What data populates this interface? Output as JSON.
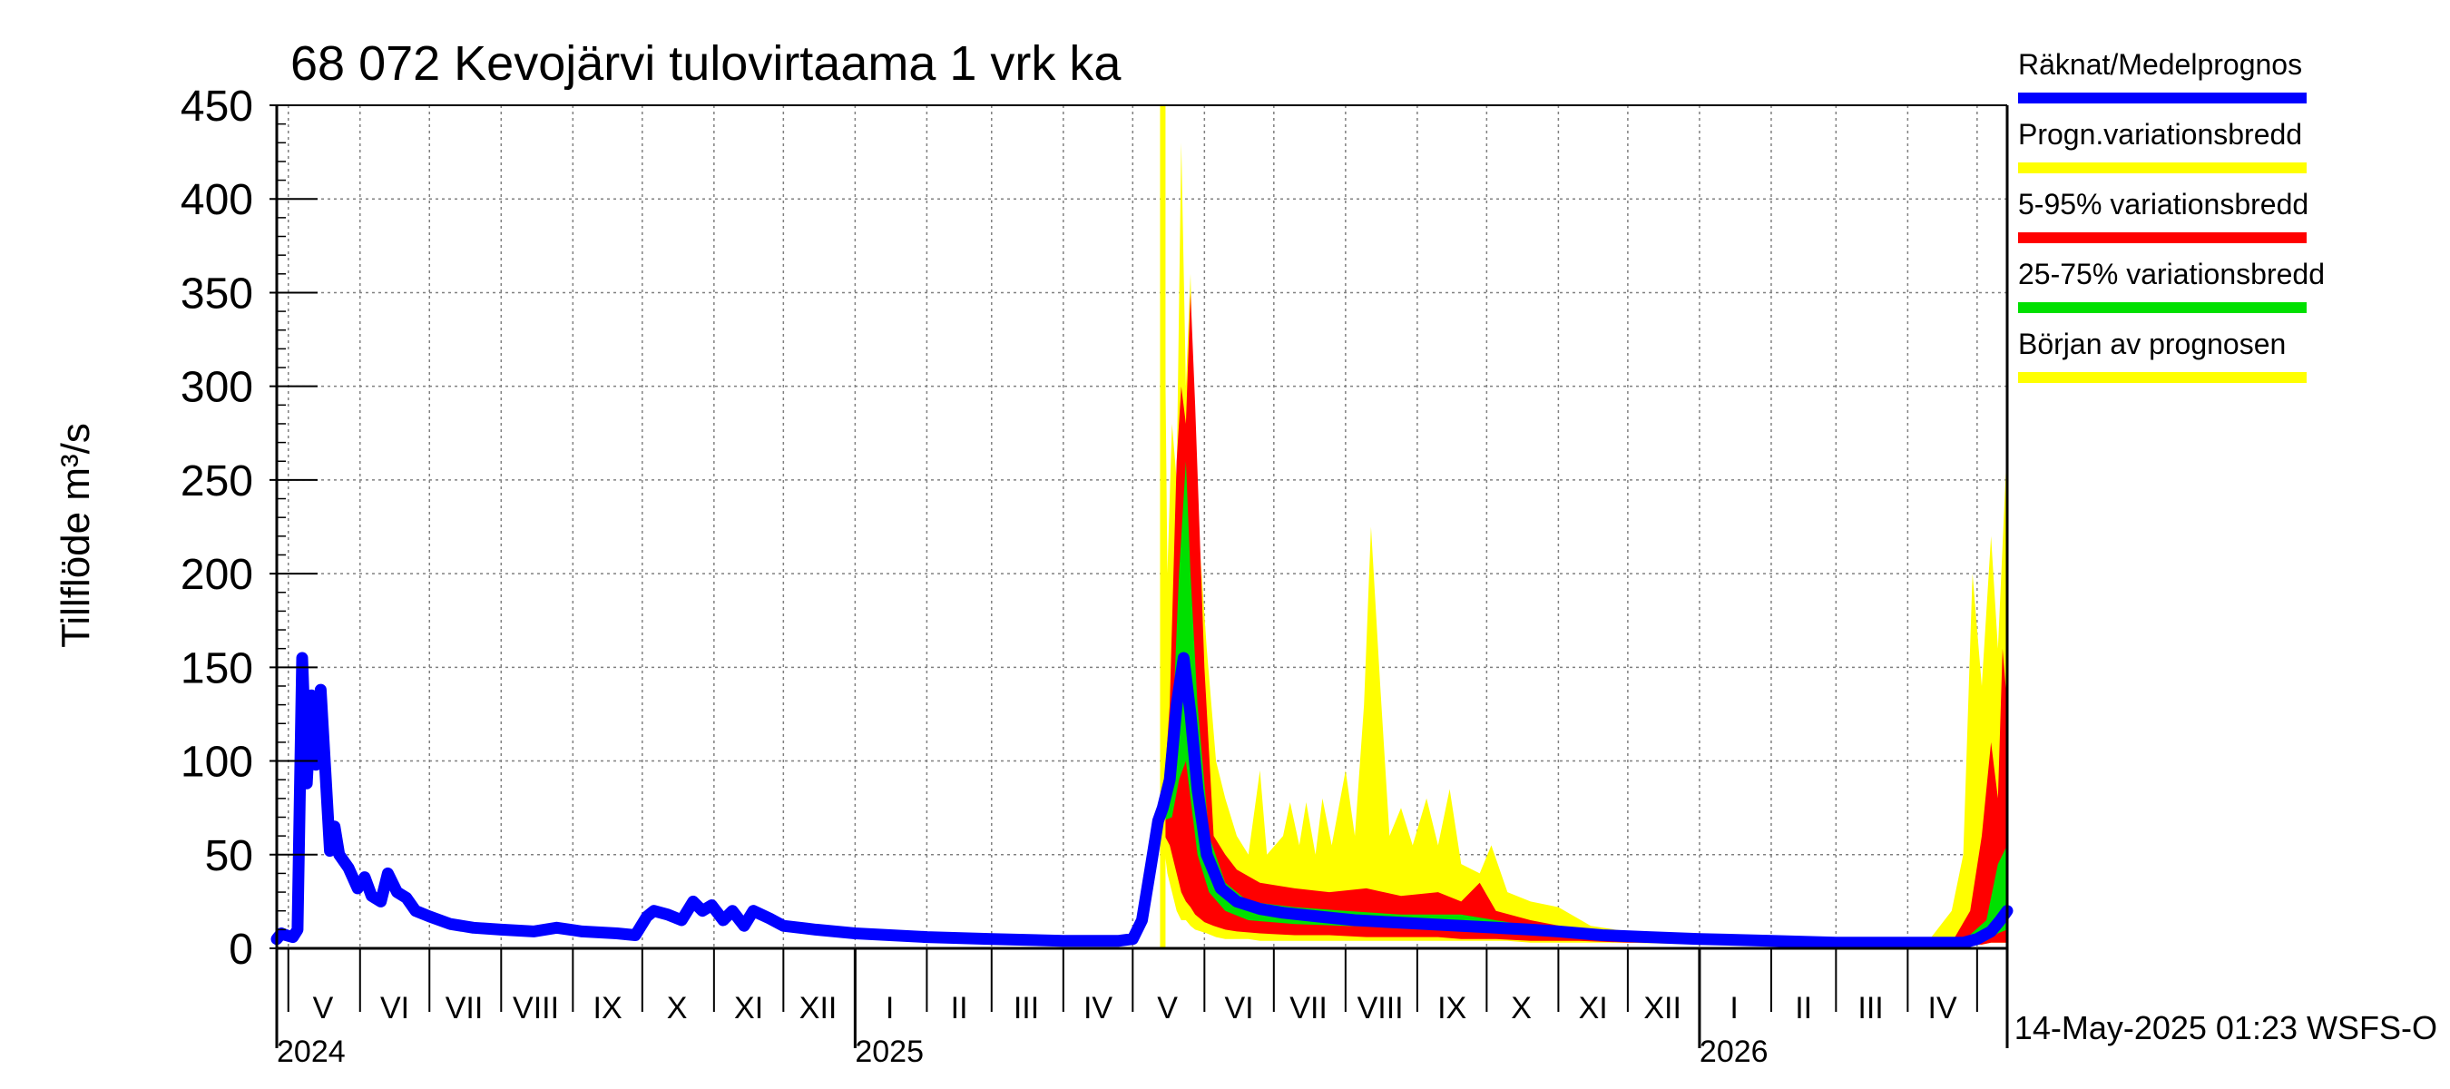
{
  "chart_data": {
    "type": "area",
    "title": "68 072 Kevojärvi tulovirtaama 1 vrk ka",
    "ylabel": "Tillflöde m³/s",
    "xlabel": "",
    "ylim": [
      0,
      450
    ],
    "yticks": [
      0,
      50,
      100,
      150,
      200,
      250,
      300,
      350,
      400,
      450
    ],
    "x_range": [
      "2024-04-26",
      "2026-05-14"
    ],
    "grid": true,
    "legend_position": "right",
    "forecast_start": "2025-05-14",
    "footer": "14-May-2025 01:23 WSFS-O",
    "month_ticks": [
      "2024-05-01",
      "2024-06-01",
      "2024-07-01",
      "2024-08-01",
      "2024-09-01",
      "2024-10-01",
      "2024-11-01",
      "2024-12-01",
      "2025-01-01",
      "2025-02-01",
      "2025-03-01",
      "2025-04-01",
      "2025-05-01",
      "2025-06-01",
      "2025-07-01",
      "2025-08-01",
      "2025-09-01",
      "2025-10-01",
      "2025-11-01",
      "2025-12-01",
      "2026-01-01",
      "2026-02-01",
      "2026-03-01",
      "2026-04-01",
      "2026-05-01"
    ],
    "month_labels": [
      {
        "label": "V",
        "date": "2024-05-16"
      },
      {
        "label": "VI",
        "date": "2024-06-16"
      },
      {
        "label": "VII",
        "date": "2024-07-16"
      },
      {
        "label": "VIII",
        "date": "2024-08-16"
      },
      {
        "label": "IX",
        "date": "2024-09-16"
      },
      {
        "label": "X",
        "date": "2024-10-16"
      },
      {
        "label": "XI",
        "date": "2024-11-16"
      },
      {
        "label": "XII",
        "date": "2024-12-16"
      },
      {
        "label": "I",
        "date": "2025-01-16"
      },
      {
        "label": "II",
        "date": "2025-02-15"
      },
      {
        "label": "III",
        "date": "2025-03-16"
      },
      {
        "label": "IV",
        "date": "2025-04-16"
      },
      {
        "label": "V",
        "date": "2025-05-16"
      },
      {
        "label": "VI",
        "date": "2025-06-16"
      },
      {
        "label": "VII",
        "date": "2025-07-16"
      },
      {
        "label": "VIII",
        "date": "2025-08-16"
      },
      {
        "label": "IX",
        "date": "2025-09-16"
      },
      {
        "label": "X",
        "date": "2025-10-16"
      },
      {
        "label": "XI",
        "date": "2025-11-16"
      },
      {
        "label": "XII",
        "date": "2025-12-16"
      },
      {
        "label": "I",
        "date": "2026-01-16"
      },
      {
        "label": "II",
        "date": "2026-02-15"
      },
      {
        "label": "III",
        "date": "2026-03-16"
      },
      {
        "label": "IV",
        "date": "2026-04-16"
      }
    ],
    "year_labels": [
      {
        "label": "2024",
        "date": "2024-04-26"
      },
      {
        "label": "2025",
        "date": "2025-01-01"
      },
      {
        "label": "2026",
        "date": "2026-01-01"
      }
    ],
    "year_ticks": [
      "2025-01-01",
      "2026-01-01"
    ],
    "legend": [
      {
        "label": "Räknat/Medelprognos",
        "color": "#0000ff"
      },
      {
        "label": "Progn.variationsbredd",
        "color": "#ffff00"
      },
      {
        "label": "5-95% variationsbredd",
        "color": "#ff0000"
      },
      {
        "label": "25-75% variationsbredd",
        "color": "#00e000"
      },
      {
        "label": "Början av prognosen",
        "color": "#ffff00"
      }
    ],
    "colors": {
      "computed": "#0000ff",
      "range_full": "#ffff00",
      "range_5_95": "#ff0000",
      "range_25_75": "#00e000",
      "forecast_start": "#ffff00"
    },
    "series": [
      {
        "name": "Räknat/Medelprognos",
        "points": [
          [
            "2024-04-26",
            5
          ],
          [
            "2024-04-28",
            8
          ],
          [
            "2024-04-30",
            7
          ],
          [
            "2024-05-03",
            6
          ],
          [
            "2024-05-05",
            10
          ],
          [
            "2024-05-07",
            155
          ],
          [
            "2024-05-09",
            88
          ],
          [
            "2024-05-11",
            135
          ],
          [
            "2024-05-13",
            98
          ],
          [
            "2024-05-15",
            138
          ],
          [
            "2024-05-17",
            95
          ],
          [
            "2024-05-19",
            52
          ],
          [
            "2024-05-21",
            65
          ],
          [
            "2024-05-23",
            50
          ],
          [
            "2024-05-27",
            43
          ],
          [
            "2024-05-31",
            32
          ],
          [
            "2024-06-03",
            38
          ],
          [
            "2024-06-06",
            28
          ],
          [
            "2024-06-10",
            25
          ],
          [
            "2024-06-13",
            40
          ],
          [
            "2024-06-17",
            30
          ],
          [
            "2024-06-21",
            27
          ],
          [
            "2024-06-25",
            20
          ],
          [
            "2024-07-01",
            17
          ],
          [
            "2024-07-10",
            13
          ],
          [
            "2024-07-20",
            11
          ],
          [
            "2024-08-01",
            10
          ],
          [
            "2024-08-15",
            9
          ],
          [
            "2024-08-25",
            11
          ],
          [
            "2024-09-05",
            9
          ],
          [
            "2024-09-20",
            8
          ],
          [
            "2024-09-28",
            7
          ],
          [
            "2024-10-03",
            17
          ],
          [
            "2024-10-06",
            20
          ],
          [
            "2024-10-12",
            18
          ],
          [
            "2024-10-18",
            15
          ],
          [
            "2024-10-23",
            25
          ],
          [
            "2024-10-27",
            20
          ],
          [
            "2024-10-31",
            23
          ],
          [
            "2024-11-05",
            15
          ],
          [
            "2024-11-09",
            20
          ],
          [
            "2024-11-14",
            12
          ],
          [
            "2024-11-18",
            20
          ],
          [
            "2024-11-25",
            16
          ],
          [
            "2024-12-01",
            12
          ],
          [
            "2024-12-15",
            10
          ],
          [
            "2025-01-01",
            8
          ],
          [
            "2025-02-01",
            6
          ],
          [
            "2025-03-01",
            5
          ],
          [
            "2025-04-01",
            4
          ],
          [
            "2025-04-25",
            4
          ],
          [
            "2025-05-01",
            5
          ],
          [
            "2025-05-05",
            15
          ],
          [
            "2025-05-09",
            45
          ],
          [
            "2025-05-12",
            68
          ],
          [
            "2025-05-14",
            75
          ],
          [
            "2025-05-17",
            90
          ],
          [
            "2025-05-20",
            130
          ],
          [
            "2025-05-23",
            155
          ],
          [
            "2025-05-26",
            125
          ],
          [
            "2025-05-29",
            85
          ],
          [
            "2025-06-02",
            50
          ],
          [
            "2025-06-08",
            32
          ],
          [
            "2025-06-15",
            25
          ],
          [
            "2025-06-25",
            21
          ],
          [
            "2025-07-05",
            19
          ],
          [
            "2025-07-20",
            17
          ],
          [
            "2025-08-05",
            15
          ],
          [
            "2025-08-20",
            14
          ],
          [
            "2025-09-05",
            13
          ],
          [
            "2025-09-20",
            12
          ],
          [
            "2025-10-05",
            11
          ],
          [
            "2025-10-20",
            10
          ],
          [
            "2025-11-01",
            9
          ],
          [
            "2025-11-20",
            7
          ],
          [
            "2025-12-10",
            6
          ],
          [
            "2026-01-01",
            5
          ],
          [
            "2026-02-01",
            4
          ],
          [
            "2026-03-01",
            3
          ],
          [
            "2026-04-01",
            3
          ],
          [
            "2026-04-25",
            3
          ],
          [
            "2026-05-01",
            5
          ],
          [
            "2026-05-07",
            9
          ],
          [
            "2026-05-11",
            15
          ],
          [
            "2026-05-14",
            20
          ]
        ]
      },
      {
        "name": "Progn.variationsbredd",
        "band": [
          [
            "2025-05-14",
            60,
            450
          ],
          [
            "2025-05-16",
            40,
            200
          ],
          [
            "2025-05-18",
            30,
            280
          ],
          [
            "2025-05-20",
            20,
            250
          ],
          [
            "2025-05-22",
            15,
            430
          ],
          [
            "2025-05-24",
            15,
            300
          ],
          [
            "2025-05-26",
            12,
            360
          ],
          [
            "2025-05-28",
            10,
            250
          ],
          [
            "2025-06-02",
            8,
            160
          ],
          [
            "2025-06-06",
            6,
            100
          ],
          [
            "2025-06-10",
            5,
            80
          ],
          [
            "2025-06-15",
            5,
            60
          ],
          [
            "2025-06-20",
            5,
            50
          ],
          [
            "2025-06-25",
            4,
            95
          ],
          [
            "2025-06-28",
            4,
            50
          ],
          [
            "2025-07-05",
            4,
            60
          ],
          [
            "2025-07-08",
            4,
            78
          ],
          [
            "2025-07-12",
            4,
            55
          ],
          [
            "2025-07-15",
            4,
            78
          ],
          [
            "2025-07-19",
            4,
            50
          ],
          [
            "2025-07-22",
            4,
            80
          ],
          [
            "2025-07-26",
            4,
            55
          ],
          [
            "2025-08-01",
            4,
            95
          ],
          [
            "2025-08-05",
            4,
            60
          ],
          [
            "2025-08-09",
            4,
            130
          ],
          [
            "2025-08-12",
            4,
            225
          ],
          [
            "2025-08-16",
            4,
            140
          ],
          [
            "2025-08-20",
            4,
            60
          ],
          [
            "2025-08-25",
            4,
            75
          ],
          [
            "2025-08-30",
            4,
            55
          ],
          [
            "2025-09-05",
            4,
            80
          ],
          [
            "2025-09-10",
            4,
            55
          ],
          [
            "2025-09-15",
            4,
            85
          ],
          [
            "2025-09-20",
            4,
            45
          ],
          [
            "2025-09-28",
            4,
            40
          ],
          [
            "2025-10-03",
            4,
            55
          ],
          [
            "2025-10-10",
            4,
            30
          ],
          [
            "2025-10-20",
            3,
            25
          ],
          [
            "2025-11-01",
            3,
            22
          ],
          [
            "2025-11-15",
            3,
            12
          ],
          [
            "2025-12-01",
            3,
            9
          ],
          [
            "2026-01-01",
            2,
            7
          ],
          [
            "2026-02-01",
            2,
            5
          ],
          [
            "2026-03-01",
            2,
            4
          ],
          [
            "2026-04-10",
            2,
            4
          ],
          [
            "2026-04-20",
            2,
            20
          ],
          [
            "2026-04-25",
            2,
            50
          ],
          [
            "2026-04-29",
            2,
            200
          ],
          [
            "2026-05-03",
            2,
            140
          ],
          [
            "2026-05-07",
            3,
            220
          ],
          [
            "2026-05-10",
            3,
            160
          ],
          [
            "2026-05-14",
            3,
            270
          ]
        ]
      },
      {
        "name": "5-95% variationsbredd",
        "band": [
          [
            "2025-05-14",
            62,
            75
          ],
          [
            "2025-05-17",
            55,
            130
          ],
          [
            "2025-05-20",
            40,
            260
          ],
          [
            "2025-05-22",
            30,
            300
          ],
          [
            "2025-05-24",
            25,
            280
          ],
          [
            "2025-05-26",
            22,
            350
          ],
          [
            "2025-05-28",
            18,
            290
          ],
          [
            "2025-06-01",
            14,
            150
          ],
          [
            "2025-06-05",
            12,
            60
          ],
          [
            "2025-06-10",
            10,
            50
          ],
          [
            "2025-06-15",
            9,
            42
          ],
          [
            "2025-06-25",
            8,
            35
          ],
          [
            "2025-07-10",
            7,
            32
          ],
          [
            "2025-07-25",
            7,
            30
          ],
          [
            "2025-08-10",
            6,
            32
          ],
          [
            "2025-08-25",
            6,
            28
          ],
          [
            "2025-09-10",
            6,
            30
          ],
          [
            "2025-09-20",
            5,
            25
          ],
          [
            "2025-09-28",
            5,
            35
          ],
          [
            "2025-10-05",
            5,
            20
          ],
          [
            "2025-10-20",
            4,
            15
          ],
          [
            "2025-11-10",
            4,
            10
          ],
          [
            "2025-12-01",
            3,
            8
          ],
          [
            "2026-01-01",
            3,
            6
          ],
          [
            "2026-02-01",
            2,
            4
          ],
          [
            "2026-03-01",
            2,
            3
          ],
          [
            "2026-04-20",
            2,
            3
          ],
          [
            "2026-04-28",
            2,
            20
          ],
          [
            "2026-05-03",
            2,
            60
          ],
          [
            "2026-05-07",
            3,
            110
          ],
          [
            "2026-05-10",
            3,
            80
          ],
          [
            "2026-05-12",
            3,
            160
          ],
          [
            "2026-05-14",
            3,
            130
          ]
        ]
      },
      {
        "name": "25-75% variationsbredd",
        "band": [
          [
            "2025-05-14",
            68,
            72
          ],
          [
            "2025-05-18",
            70,
            110
          ],
          [
            "2025-05-21",
            90,
            200
          ],
          [
            "2025-05-24",
            100,
            260
          ],
          [
            "2025-05-26",
            80,
            200
          ],
          [
            "2025-05-29",
            50,
            130
          ],
          [
            "2025-06-03",
            30,
            60
          ],
          [
            "2025-06-10",
            20,
            35
          ],
          [
            "2025-06-20",
            15,
            25
          ],
          [
            "2025-07-10",
            13,
            22
          ],
          [
            "2025-08-01",
            12,
            20
          ],
          [
            "2025-08-25",
            11,
            18
          ],
          [
            "2025-09-20",
            10,
            18
          ],
          [
            "2025-10-15",
            8,
            13
          ],
          [
            "2025-11-15",
            6,
            9
          ],
          [
            "2026-01-01",
            4,
            6
          ],
          [
            "2026-03-01",
            3,
            4
          ],
          [
            "2026-04-25",
            3,
            4
          ],
          [
            "2026-05-05",
            4,
            15
          ],
          [
            "2026-05-10",
            8,
            45
          ],
          [
            "2026-05-14",
            10,
            55
          ]
        ]
      }
    ]
  }
}
